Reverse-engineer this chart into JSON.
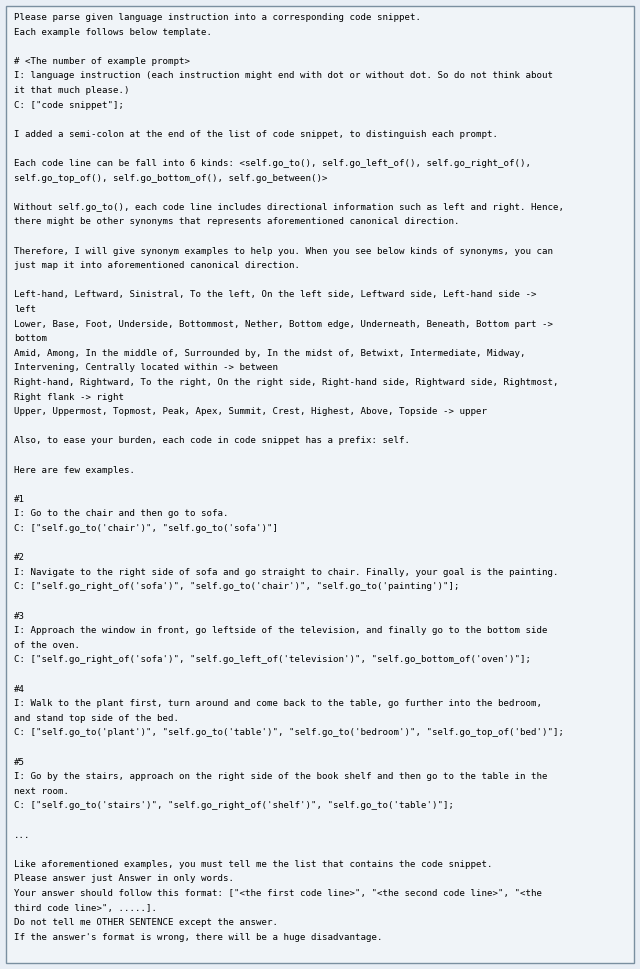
{
  "background_color": "#e8eef5",
  "box_background": "#f0f4f8",
  "border_color": "#7a8fa0",
  "text_color": "#000000",
  "font_size": 6.55,
  "font_family": "DejaVu Sans Mono",
  "content": [
    "Please parse given language instruction into a corresponding code snippet.",
    "Each example follows below template.",
    "",
    "# <The number of example prompt>",
    "I: language instruction (each instruction might end with dot or without dot. So do not think about",
    "it that much please.)",
    "C: [\"code snippet\"];",
    "",
    "I added a semi-colon at the end of the list of code snippet, to distinguish each prompt.",
    "",
    "Each code line can be fall into 6 kinds: <self.go_to(), self.go_left_of(), self.go_right_of(),",
    "self.go_top_of(), self.go_bottom_of(), self.go_between()>",
    "",
    "Without self.go_to(), each code line includes directional information such as left and right. Hence,",
    "there might be other synonyms that represents aforementioned canonical direction.",
    "",
    "Therefore, I will give synonym examples to help you. When you see below kinds of synonyms, you can",
    "just map it into aforementioned canonical direction.",
    "",
    "Left-hand, Leftward, Sinistral, To the left, On the left side, Leftward side, Left-hand side ->",
    "left",
    "Lower, Base, Foot, Underside, Bottommost, Nether, Bottom edge, Underneath, Beneath, Bottom part ->",
    "bottom",
    "Amid, Among, In the middle of, Surrounded by, In the midst of, Betwixt, Intermediate, Midway,",
    "Intervening, Centrally located within -> between",
    "Right-hand, Rightward, To the right, On the right side, Right-hand side, Rightward side, Rightmost,",
    "Right flank -> right",
    "Upper, Uppermost, Topmost, Peak, Apex, Summit, Crest, Highest, Above, Topside -> upper",
    "",
    "Also, to ease your burden, each code in code snippet has a prefix: self.",
    "",
    "Here are few examples.",
    "",
    "#1",
    "I: Go to the chair and then go to sofa.",
    "C: [\"self.go_to('chair')\", \"self.go_to('sofa')\"]",
    "",
    "#2",
    "I: Navigate to the right side of sofa and go straight to chair. Finally, your goal is the painting.",
    "C: [\"self.go_right_of('sofa')\", \"self.go_to('chair')\", \"self.go_to('painting')\"];",
    "",
    "#3",
    "I: Approach the window in front, go leftside of the television, and finally go to the bottom side",
    "of the oven.",
    "C: [\"self.go_right_of('sofa')\", \"self.go_left_of('television')\", \"self.go_bottom_of('oven')\"];",
    "",
    "#4",
    "I: Walk to the plant first, turn around and come back to the table, go further into the bedroom,",
    "and stand top side of the bed.",
    "C: [\"self.go_to('plant')\", \"self.go_to('table')\", \"self.go_to('bedroom')\", \"self.go_top_of('bed')\"];",
    "",
    "#5",
    "I: Go by the stairs, approach on the right side of the book shelf and then go to the table in the",
    "next room.",
    "C: [\"self.go_to('stairs')\", \"self.go_right_of('shelf')\", \"self.go_to('table')\"];",
    "",
    "...",
    "",
    "Like aforementioned examples, you must tell me the list that contains the code snippet.",
    "Please answer just Answer in only words.",
    "Your answer should follow this format: [\"<the first code line>\", \"<the second code line>\", \"<the",
    "third code line>\", .....].",
    "Do not tell me OTHER SENTENCE except the answer.",
    "If the answer's format is wrong, there will be a huge disadvantage."
  ]
}
